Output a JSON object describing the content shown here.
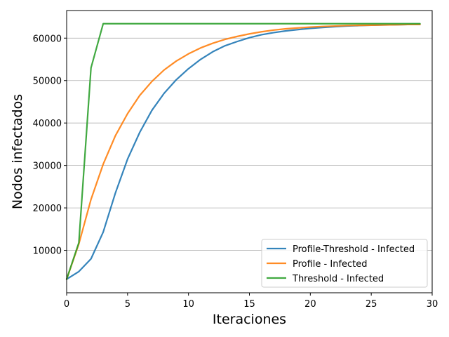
{
  "chart_data": {
    "type": "line",
    "xlabel": "Iteraciones",
    "ylabel": "Nodos infectados",
    "xlim": [
      0,
      30
    ],
    "ylim": [
      0,
      66500
    ],
    "xticks": [
      0,
      5,
      10,
      15,
      20,
      25,
      30
    ],
    "yticks": [
      10000,
      20000,
      30000,
      40000,
      50000,
      60000
    ],
    "grid": "horizontal",
    "legend_position": "lower-right",
    "x": [
      0,
      1,
      2,
      3,
      4,
      5,
      6,
      7,
      8,
      9,
      10,
      11,
      12,
      13,
      14,
      15,
      16,
      17,
      18,
      19,
      20,
      21,
      22,
      23,
      24,
      25,
      26,
      27,
      28,
      29
    ],
    "series": [
      {
        "name": "Profile-Threshold - Infected",
        "color": "#1f77b4",
        "values": [
          3200,
          5000,
          8000,
          14300,
          23500,
          31500,
          37800,
          43000,
          47000,
          50200,
          52800,
          55000,
          56800,
          58200,
          59200,
          60100,
          60800,
          61300,
          61700,
          62000,
          62300,
          62500,
          62700,
          62850,
          62950,
          63050,
          63100,
          63150,
          63200,
          63250
        ]
      },
      {
        "name": "Profile - Infected",
        "color": "#ff7f0e",
        "values": [
          3200,
          11500,
          22000,
          30300,
          37000,
          42200,
          46500,
          49800,
          52500,
          54600,
          56300,
          57700,
          58800,
          59700,
          60400,
          61000,
          61500,
          61900,
          62200,
          62400,
          62600,
          62750,
          62850,
          62950,
          63000,
          63050,
          63100,
          63150,
          63200,
          63200
        ]
      },
      {
        "name": "Threshold - Infected",
        "color": "#2ca02c",
        "values": [
          3200,
          11800,
          53000,
          63400,
          63400,
          63400,
          63400,
          63400,
          63400,
          63400,
          63400,
          63400,
          63400,
          63400,
          63400,
          63400,
          63400,
          63400,
          63400,
          63400,
          63400,
          63400,
          63400,
          63400,
          63400,
          63400,
          63400,
          63400,
          63400,
          63400
        ]
      }
    ]
  }
}
